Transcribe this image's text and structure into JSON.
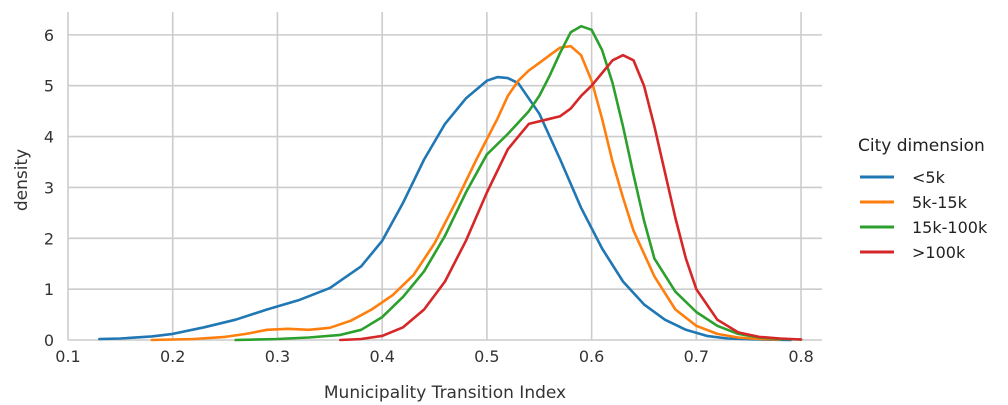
{
  "chart_data": {
    "type": "line",
    "xlabel": "Municipality Transition Index",
    "ylabel": "density",
    "xlim": [
      0.1,
      0.82
    ],
    "ylim": [
      0,
      6.45
    ],
    "xticks": [
      0.1,
      0.2,
      0.3,
      0.4,
      0.5,
      0.6,
      0.7,
      0.8
    ],
    "xtick_labels": [
      "0.1",
      "0.2",
      "0.3",
      "0.4",
      "0.5",
      "0.6",
      "0.7",
      "0.8"
    ],
    "yticks": [
      0,
      1,
      2,
      3,
      4,
      5,
      6
    ],
    "ytick_labels": [
      "0",
      "1",
      "2",
      "3",
      "4",
      "5",
      "6"
    ],
    "grid": true,
    "legend": {
      "title": "City dimension",
      "placement": "right"
    },
    "series": [
      {
        "name": "<5k",
        "color": "#1f77b4",
        "points": [
          [
            0.13,
            0.02
          ],
          [
            0.15,
            0.03
          ],
          [
            0.18,
            0.07
          ],
          [
            0.2,
            0.12
          ],
          [
            0.23,
            0.25
          ],
          [
            0.26,
            0.4
          ],
          [
            0.29,
            0.6
          ],
          [
            0.32,
            0.78
          ],
          [
            0.35,
            1.02
          ],
          [
            0.38,
            1.45
          ],
          [
            0.4,
            1.95
          ],
          [
            0.42,
            2.7
          ],
          [
            0.44,
            3.55
          ],
          [
            0.46,
            4.25
          ],
          [
            0.48,
            4.75
          ],
          [
            0.5,
            5.1
          ],
          [
            0.51,
            5.17
          ],
          [
            0.52,
            5.15
          ],
          [
            0.53,
            5.05
          ],
          [
            0.55,
            4.45
          ],
          [
            0.57,
            3.55
          ],
          [
            0.59,
            2.6
          ],
          [
            0.61,
            1.8
          ],
          [
            0.63,
            1.15
          ],
          [
            0.65,
            0.7
          ],
          [
            0.67,
            0.4
          ],
          [
            0.69,
            0.2
          ],
          [
            0.71,
            0.08
          ],
          [
            0.73,
            0.03
          ],
          [
            0.76,
            0.01
          ],
          [
            0.79,
            0.0
          ]
        ]
      },
      {
        "name": "5k-15k",
        "color": "#ff7f0e",
        "points": [
          [
            0.18,
            0.0
          ],
          [
            0.22,
            0.02
          ],
          [
            0.25,
            0.06
          ],
          [
            0.27,
            0.12
          ],
          [
            0.29,
            0.2
          ],
          [
            0.31,
            0.22
          ],
          [
            0.33,
            0.2
          ],
          [
            0.35,
            0.24
          ],
          [
            0.37,
            0.38
          ],
          [
            0.39,
            0.6
          ],
          [
            0.41,
            0.88
          ],
          [
            0.43,
            1.28
          ],
          [
            0.45,
            1.9
          ],
          [
            0.47,
            2.7
          ],
          [
            0.49,
            3.55
          ],
          [
            0.51,
            4.35
          ],
          [
            0.52,
            4.8
          ],
          [
            0.53,
            5.1
          ],
          [
            0.54,
            5.3
          ],
          [
            0.55,
            5.45
          ],
          [
            0.56,
            5.6
          ],
          [
            0.57,
            5.75
          ],
          [
            0.58,
            5.78
          ],
          [
            0.59,
            5.6
          ],
          [
            0.6,
            5.1
          ],
          [
            0.61,
            4.35
          ],
          [
            0.62,
            3.5
          ],
          [
            0.63,
            2.8
          ],
          [
            0.64,
            2.15
          ],
          [
            0.66,
            1.25
          ],
          [
            0.68,
            0.6
          ],
          [
            0.7,
            0.28
          ],
          [
            0.72,
            0.12
          ],
          [
            0.74,
            0.05
          ],
          [
            0.76,
            0.02
          ],
          [
            0.78,
            0.01
          ]
        ]
      },
      {
        "name": "15k-100k",
        "color": "#2ca02c",
        "points": [
          [
            0.26,
            0.0
          ],
          [
            0.3,
            0.02
          ],
          [
            0.33,
            0.05
          ],
          [
            0.36,
            0.1
          ],
          [
            0.38,
            0.2
          ],
          [
            0.4,
            0.45
          ],
          [
            0.42,
            0.85
          ],
          [
            0.44,
            1.35
          ],
          [
            0.46,
            2.05
          ],
          [
            0.48,
            2.9
          ],
          [
            0.5,
            3.65
          ],
          [
            0.52,
            4.05
          ],
          [
            0.54,
            4.5
          ],
          [
            0.55,
            4.8
          ],
          [
            0.56,
            5.2
          ],
          [
            0.57,
            5.65
          ],
          [
            0.58,
            6.05
          ],
          [
            0.59,
            6.17
          ],
          [
            0.6,
            6.1
          ],
          [
            0.61,
            5.7
          ],
          [
            0.62,
            5.05
          ],
          [
            0.63,
            4.2
          ],
          [
            0.64,
            3.25
          ],
          [
            0.65,
            2.35
          ],
          [
            0.66,
            1.6
          ],
          [
            0.68,
            0.95
          ],
          [
            0.7,
            0.55
          ],
          [
            0.72,
            0.28
          ],
          [
            0.74,
            0.12
          ],
          [
            0.76,
            0.05
          ],
          [
            0.78,
            0.02
          ],
          [
            0.8,
            0.01
          ]
        ]
      },
      {
        "name": ">100k",
        "color": "#d62728",
        "points": [
          [
            0.36,
            0.0
          ],
          [
            0.38,
            0.02
          ],
          [
            0.4,
            0.08
          ],
          [
            0.42,
            0.25
          ],
          [
            0.44,
            0.6
          ],
          [
            0.46,
            1.15
          ],
          [
            0.48,
            1.95
          ],
          [
            0.5,
            2.9
          ],
          [
            0.52,
            3.75
          ],
          [
            0.54,
            4.25
          ],
          [
            0.56,
            4.35
          ],
          [
            0.57,
            4.4
          ],
          [
            0.58,
            4.55
          ],
          [
            0.59,
            4.8
          ],
          [
            0.6,
            5.0
          ],
          [
            0.61,
            5.25
          ],
          [
            0.62,
            5.5
          ],
          [
            0.63,
            5.6
          ],
          [
            0.64,
            5.5
          ],
          [
            0.65,
            5.0
          ],
          [
            0.66,
            4.2
          ],
          [
            0.67,
            3.3
          ],
          [
            0.68,
            2.4
          ],
          [
            0.69,
            1.6
          ],
          [
            0.7,
            1.0
          ],
          [
            0.72,
            0.4
          ],
          [
            0.74,
            0.15
          ],
          [
            0.76,
            0.06
          ],
          [
            0.78,
            0.03
          ],
          [
            0.8,
            0.01
          ]
        ]
      }
    ]
  }
}
